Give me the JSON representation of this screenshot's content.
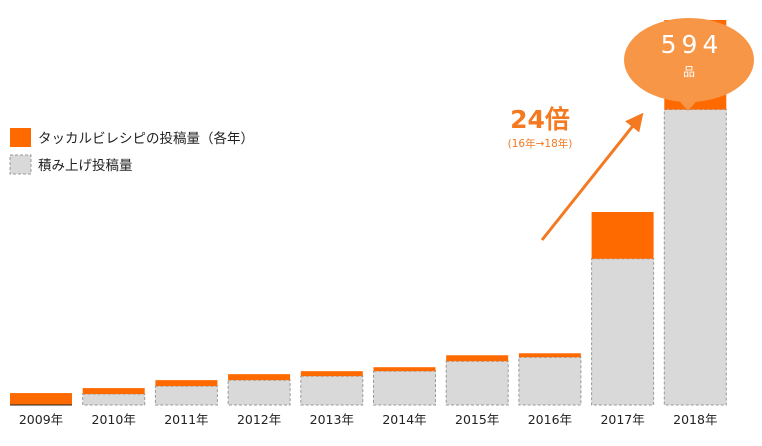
{
  "chart_data": {
    "type": "bar",
    "stacked": true,
    "categories": [
      "2009年",
      "2010年",
      "2011年",
      "2012年",
      "2013年",
      "2014年",
      "2015年",
      "2016年",
      "2017年",
      "2018年"
    ],
    "series": [
      {
        "name": "積み上げ投稿量",
        "values": [
          0,
          11,
          19,
          25,
          29,
          34,
          44,
          48,
          147,
          297
        ]
      },
      {
        "name": "タッカルビレシピの投稿量（各年）",
        "values": [
          12,
          6,
          6,
          6,
          5,
          4,
          6,
          4,
          47,
          90
        ]
      }
    ],
    "ylim": [
      0,
      387
    ],
    "grid": false,
    "legend_position": "left",
    "colors": {
      "annual": "#ff6a00",
      "cumulative": "#d9d9d9",
      "cumulative_border": "#999999",
      "accent": "#f79646",
      "arrow": "#f47920"
    },
    "annotations": {
      "growth": {
        "main": "24倍",
        "sub": "(16年→18年)"
      },
      "total_bubble": {
        "value": "594",
        "unit": "品"
      }
    }
  }
}
